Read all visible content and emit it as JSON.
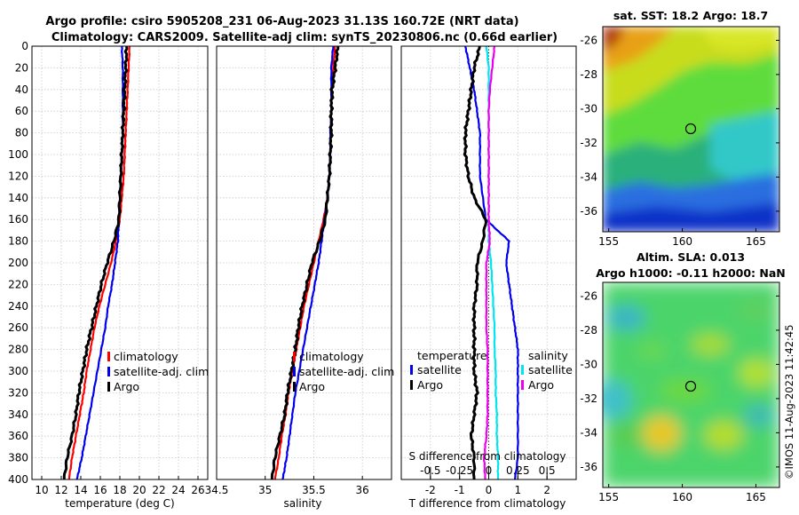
{
  "title": {
    "line1": "Argo profile: csiro 5905208_231 06-Aug-2023 31.13S 160.72E (NRT data)",
    "line2": "Climatology: CARS2009. Satellite-adj clim: synTS_20230806.nc (0.66d earlier)"
  },
  "colors": {
    "red": "#ff0000",
    "blue": "#0000ee",
    "black": "#000000",
    "cyan": "#00e5ee",
    "magenta": "#ee00ee",
    "grid": "#c8c8c8"
  },
  "panels": {
    "temperature": {
      "xlabel": "temperature (deg C)",
      "legend": [
        "climatology",
        "satellite-adj. clim",
        "Argo"
      ]
    },
    "salinity": {
      "xlabel": "salinity",
      "legend": [
        "climatology",
        "satellite-adj. clim",
        "Argo"
      ]
    },
    "difference": {
      "xlabel": "T difference from climatology",
      "s_axis_label": "S difference from climatology",
      "legend_temperature": {
        "title": "temperature",
        "items": [
          "satellite",
          "Argo"
        ]
      },
      "legend_salinity": {
        "title": "salinity",
        "items": [
          "satellite",
          "Argo"
        ]
      }
    },
    "sst_map": {
      "title": "sat. SST: 18.2 Argo: 18.7"
    },
    "sla_map": {
      "title1": "Altim. SLA: 0.013",
      "title2": "Argo h1000: -0.11 h2000: NaN"
    }
  },
  "copyright": "©IMOS 11-Aug-2023 11:42:45",
  "chart_data": [
    {
      "type": "line",
      "name": "temperature profile",
      "xlabel": "temperature (deg C)",
      "ylabel": "depth",
      "xlim": [
        9,
        27
      ],
      "ylim": [
        0,
        400
      ],
      "xticks": [
        10,
        12,
        14,
        16,
        18,
        20,
        22,
        24,
        26
      ],
      "yticks": [
        0,
        20,
        40,
        60,
        80,
        100,
        120,
        140,
        160,
        180,
        200,
        220,
        240,
        260,
        280,
        300,
        320,
        340,
        360,
        380,
        400
      ],
      "series": [
        {
          "name": "climatology",
          "color": "#ff0000",
          "depth": [
            0,
            20,
            40,
            60,
            80,
            100,
            120,
            140,
            160,
            180,
            200,
            220,
            240,
            260,
            280,
            300,
            320,
            340,
            360,
            380,
            400
          ],
          "values": [
            19.0,
            18.9,
            18.8,
            18.7,
            18.6,
            18.5,
            18.4,
            18.2,
            18.0,
            17.6,
            17.1,
            16.5,
            15.9,
            15.4,
            15.0,
            14.6,
            14.3,
            13.9,
            13.5,
            13.1,
            12.8
          ]
        },
        {
          "name": "satellite-adj. clim",
          "color": "#0000ee",
          "depth": [
            0,
            20,
            40,
            60,
            80,
            100,
            120,
            140,
            160,
            180,
            200,
            220,
            240,
            260,
            280,
            300,
            320,
            340,
            360,
            380,
            400
          ],
          "values": [
            18.2,
            18.3,
            18.3,
            18.3,
            18.3,
            18.2,
            18.1,
            18.0,
            17.9,
            17.8,
            17.5,
            17.2,
            16.8,
            16.5,
            16.1,
            15.7,
            15.3,
            14.9,
            14.5,
            14.1,
            13.6
          ]
        },
        {
          "name": "Argo",
          "color": "#000000",
          "depth": [
            0,
            20,
            40,
            60,
            80,
            100,
            120,
            140,
            160,
            180,
            200,
            220,
            240,
            260,
            280,
            300,
            320,
            340,
            360,
            380,
            400
          ],
          "values": [
            18.7,
            18.6,
            18.5,
            18.4,
            18.3,
            18.2,
            18.1,
            18.0,
            17.9,
            17.4,
            16.7,
            16.1,
            15.6,
            15.1,
            14.6,
            14.2,
            13.8,
            13.5,
            13.1,
            12.6,
            12.3
          ]
        }
      ]
    },
    {
      "type": "line",
      "name": "salinity profile",
      "xlabel": "salinity",
      "ylabel": "depth",
      "xlim": [
        34.5,
        36.3
      ],
      "ylim": [
        0,
        400
      ],
      "xticks": [
        34.5,
        35,
        35.5,
        36
      ],
      "series": [
        {
          "name": "climatology",
          "color": "#ff0000",
          "depth": [
            0,
            20,
            40,
            60,
            80,
            100,
            120,
            140,
            160,
            180,
            200,
            220,
            240,
            260,
            280,
            300,
            320,
            340,
            360,
            380,
            400
          ],
          "values": [
            35.72,
            35.7,
            35.68,
            35.68,
            35.68,
            35.67,
            35.66,
            35.64,
            35.6,
            35.55,
            35.5,
            35.45,
            35.4,
            35.36,
            35.32,
            35.28,
            35.24,
            35.21,
            35.17,
            35.14,
            35.1
          ]
        },
        {
          "name": "satellite-adj. clim",
          "color": "#0000ee",
          "depth": [
            0,
            20,
            40,
            60,
            80,
            100,
            120,
            140,
            160,
            180,
            200,
            220,
            240,
            260,
            280,
            300,
            320,
            340,
            360,
            380,
            400
          ],
          "values": [
            35.7,
            35.68,
            35.68,
            35.68,
            35.67,
            35.67,
            35.66,
            35.64,
            35.61,
            35.58,
            35.55,
            35.51,
            35.47,
            35.43,
            35.39,
            35.35,
            35.31,
            35.28,
            35.25,
            35.22,
            35.18
          ]
        },
        {
          "name": "Argo",
          "color": "#000000",
          "depth": [
            0,
            20,
            40,
            60,
            80,
            100,
            120,
            140,
            160,
            180,
            200,
            220,
            240,
            260,
            280,
            300,
            320,
            340,
            360,
            380,
            400
          ],
          "values": [
            35.75,
            35.72,
            35.69,
            35.68,
            35.68,
            35.67,
            35.66,
            35.64,
            35.62,
            35.56,
            35.48,
            35.43,
            35.38,
            35.34,
            35.31,
            35.27,
            35.23,
            35.2,
            35.15,
            35.1,
            35.07
          ]
        }
      ]
    },
    {
      "type": "line",
      "name": "difference from climatology",
      "xlabel": "T difference from climatology",
      "s_label": "S difference from climatology",
      "xlim": [
        -3,
        3
      ],
      "ylim": [
        0,
        400
      ],
      "xticks": [
        -2,
        -1,
        0,
        1,
        2
      ],
      "s_xticks": [
        -0.5,
        -0.25,
        0,
        0.25,
        0.5
      ],
      "series": [
        {
          "name": "temperature satellite",
          "color": "#0000ee",
          "depth": [
            0,
            20,
            40,
            60,
            80,
            100,
            120,
            140,
            160,
            175,
            180,
            200,
            220,
            240,
            260,
            280,
            300,
            320,
            340,
            360,
            380,
            400
          ],
          "values": [
            -0.8,
            -0.65,
            -0.5,
            -0.4,
            -0.3,
            -0.3,
            -0.3,
            -0.2,
            -0.1,
            0.5,
            0.7,
            0.6,
            0.7,
            0.8,
            0.9,
            1.0,
            1.0,
            1.0,
            1.0,
            1.0,
            1.0,
            0.9
          ]
        },
        {
          "name": "temperature Argo",
          "color": "#000000",
          "depth": [
            0,
            20,
            40,
            60,
            80,
            100,
            120,
            140,
            160,
            180,
            200,
            220,
            240,
            260,
            280,
            300,
            320,
            340,
            360,
            380,
            400
          ],
          "values": [
            -0.3,
            -0.5,
            -0.6,
            -0.7,
            -0.8,
            -0.8,
            -0.7,
            -0.5,
            -0.1,
            -0.2,
            -0.4,
            -0.4,
            -0.5,
            -0.5,
            -0.5,
            -0.5,
            -0.4,
            -0.5,
            -0.6,
            -0.5,
            -0.5
          ]
        },
        {
          "name": "salinity satellite",
          "color": "#00e5ee",
          "s_values": [
            -0.02,
            0,
            0,
            0,
            0,
            0,
            0,
            0,
            0,
            0,
            0.02,
            0.03,
            0.04,
            0.05,
            0.05,
            0.06,
            0.06,
            0.07,
            0.07,
            0.08,
            0.08
          ],
          "depth": [
            0,
            20,
            40,
            60,
            80,
            100,
            120,
            140,
            160,
            180,
            200,
            220,
            240,
            260,
            280,
            300,
            320,
            340,
            360,
            380,
            400
          ]
        },
        {
          "name": "salinity Argo",
          "color": "#ee00ee",
          "s_values": [
            0.05,
            0.03,
            0.01,
            0,
            0,
            0,
            0,
            0,
            0,
            0.01,
            -0.02,
            -0.02,
            -0.02,
            -0.02,
            -0.01,
            -0.01,
            -0.01,
            -0.01,
            -0.02,
            -0.04,
            -0.03
          ],
          "depth": [
            0,
            20,
            40,
            60,
            80,
            100,
            120,
            140,
            160,
            180,
            200,
            220,
            240,
            260,
            280,
            300,
            320,
            340,
            360,
            380,
            400
          ]
        }
      ]
    },
    {
      "type": "heatmap",
      "name": "sat. SST map",
      "title": "sat. SST: 18.2 Argo: 18.7",
      "xlim": [
        154.6,
        166.6
      ],
      "ylim": [
        -37.2,
        -25.2
      ],
      "xticks": [
        155,
        160,
        165
      ],
      "yticks": [
        -26,
        -28,
        -30,
        -32,
        -34,
        -36
      ],
      "marker": {
        "lon": 160.72,
        "lat": -31.13
      }
    },
    {
      "type": "heatmap",
      "name": "Altim. SLA map",
      "title": "Altim. SLA: 0.013",
      "xlim": [
        154.6,
        166.6
      ],
      "ylim": [
        -37.2,
        -25.2
      ],
      "xticks": [
        155,
        160,
        165
      ],
      "yticks": [
        -26,
        -28,
        -30,
        -32,
        -34,
        -36
      ],
      "marker": {
        "lon": 160.72,
        "lat": -31.13
      }
    }
  ]
}
